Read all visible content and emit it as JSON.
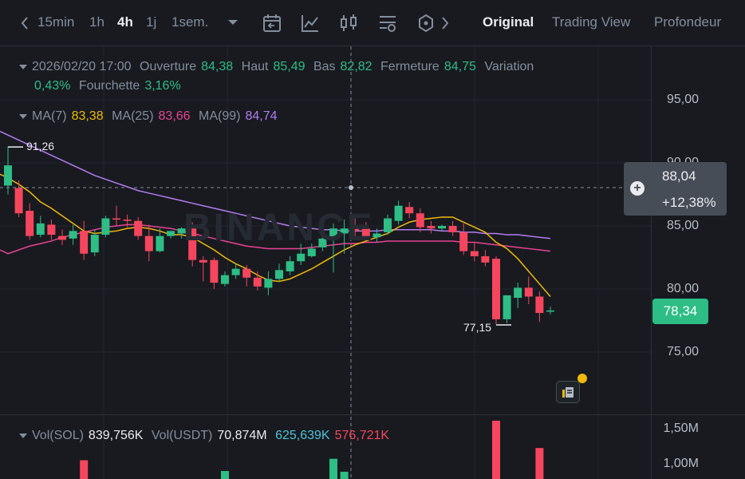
{
  "toolbar": {
    "intervals": [
      "15min",
      "1h",
      "4h",
      "1j",
      "1sem."
    ],
    "active_interval": "4h",
    "views": [
      "Original",
      "Trading View",
      "Profondeur"
    ],
    "active_view": "Original",
    "icons": [
      "chevron-left-icon",
      "chevron-down-icon",
      "calendar-icon",
      "indicator-icon",
      "candlestick-icon",
      "settings-icon",
      "hexagon-icon",
      "chevron-right-icon"
    ]
  },
  "ohlc": {
    "date": "2026/02/20 17:00",
    "open_label": "Ouverture",
    "open": "84,38",
    "high_label": "Haut",
    "high": "85,49",
    "low_label": "Bas",
    "low": "82,82",
    "close_label": "Fermeture",
    "close": "84,75",
    "change_label": "Variation",
    "change": "0,43%",
    "range_label": "Fourchette",
    "range": "3,16%"
  },
  "ma": {
    "ma7_label": "MA(7)",
    "ma7": "83,38",
    "ma25_label": "MA(25)",
    "ma25": "83,66",
    "ma99_label": "MA(99)",
    "ma99": "84,74"
  },
  "price_axis": [
    "95,00",
    "90,00",
    "85,00",
    "80,00",
    "75,00"
  ],
  "crosshair_box": {
    "price": "88,04",
    "change": "+12,38%"
  },
  "current_price": "78,34",
  "high_mark": "91,26",
  "low_mark": "77,15",
  "watermark": "BINANCE",
  "volume": {
    "vol_sol_label": "Vol(SOL)",
    "vol_sol": "839,756K",
    "vol_usdt_label": "Vol(USDT)",
    "vol_usdt": "70,874M",
    "buy": "625,639K",
    "sell": "576,721K",
    "axis": [
      "1,50M",
      "1,00M"
    ]
  },
  "colors": {
    "up": "#2ebd85",
    "down": "#f6465d",
    "ma7": "#f0b90b",
    "ma25": "#e84393",
    "ma99": "#b47cf0"
  },
  "chart_data": {
    "type": "candlestick",
    "ylim": [
      70.5,
      98
    ],
    "candles": [
      {
        "o": 88.2,
        "h": 91.3,
        "c": 89.8,
        "l": 87.5
      },
      {
        "o": 88.0,
        "h": 88.6,
        "c": 86.0,
        "l": 85.7
      },
      {
        "o": 86.2,
        "h": 86.8,
        "c": 84.2,
        "l": 83.9
      },
      {
        "o": 84.3,
        "h": 85.8,
        "c": 85.2,
        "l": 84.1
      },
      {
        "o": 85.1,
        "h": 85.5,
        "c": 84.3,
        "l": 83.9
      },
      {
        "o": 84.2,
        "h": 84.7,
        "c": 83.9,
        "l": 83.5
      },
      {
        "o": 84.0,
        "h": 85.1,
        "c": 84.6,
        "l": 83.5
      },
      {
        "o": 84.6,
        "h": 85.4,
        "c": 82.8,
        "l": 82.3
      },
      {
        "o": 82.9,
        "h": 84.7,
        "c": 84.3,
        "l": 82.6
      },
      {
        "o": 84.3,
        "h": 85.8,
        "c": 85.6,
        "l": 84.1
      },
      {
        "o": 85.6,
        "h": 86.6,
        "c": 85.5,
        "l": 85.0
      },
      {
        "o": 85.5,
        "h": 85.9,
        "c": 85.4,
        "l": 84.9
      },
      {
        "o": 85.4,
        "h": 85.7,
        "c": 84.2,
        "l": 83.9
      },
      {
        "o": 84.2,
        "h": 85.1,
        "c": 83.0,
        "l": 82.2
      },
      {
        "o": 83.0,
        "h": 84.8,
        "c": 84.2,
        "l": 82.9
      },
      {
        "o": 84.2,
        "h": 84.6,
        "c": 84.6,
        "l": 84.0
      },
      {
        "o": 84.4,
        "h": 84.9,
        "c": 84.8,
        "l": 84.0
      },
      {
        "o": 84.8,
        "h": 85.3,
        "c": 82.3,
        "l": 81.8
      },
      {
        "o": 82.3,
        "h": 82.6,
        "c": 82.1,
        "l": 80.6
      },
      {
        "o": 82.3,
        "h": 82.5,
        "c": 80.5,
        "l": 80.0
      },
      {
        "o": 80.4,
        "h": 81.4,
        "c": 81.1,
        "l": 80.2
      },
      {
        "o": 81.1,
        "h": 82.0,
        "c": 81.6,
        "l": 80.8
      },
      {
        "o": 81.6,
        "h": 81.9,
        "c": 80.9,
        "l": 80.2
      },
      {
        "o": 80.9,
        "h": 81.4,
        "c": 80.2,
        "l": 79.9
      },
      {
        "o": 80.1,
        "h": 81.4,
        "c": 80.8,
        "l": 79.5
      },
      {
        "o": 80.8,
        "h": 82.0,
        "c": 81.5,
        "l": 80.6
      },
      {
        "o": 81.4,
        "h": 82.6,
        "c": 82.2,
        "l": 81.1
      },
      {
        "o": 82.2,
        "h": 83.6,
        "c": 82.8,
        "l": 81.9
      },
      {
        "o": 82.6,
        "h": 83.6,
        "c": 83.2,
        "l": 82.5
      },
      {
        "o": 83.3,
        "h": 84.6,
        "c": 84.0,
        "l": 83.0
      },
      {
        "o": 83.9,
        "h": 85.2,
        "c": 84.8,
        "l": 81.3
      },
      {
        "o": 84.4,
        "h": 85.5,
        "c": 84.8,
        "l": 82.8
      },
      {
        "o": 84.9,
        "h": 85.6,
        "c": 84.6,
        "l": 84.1
      },
      {
        "o": 84.8,
        "h": 85.3,
        "c": 84.1,
        "l": 83.9
      },
      {
        "o": 84.1,
        "h": 84.8,
        "c": 84.4,
        "l": 83.7
      },
      {
        "o": 84.5,
        "h": 85.9,
        "c": 85.6,
        "l": 84.3
      },
      {
        "o": 85.4,
        "h": 87.0,
        "c": 86.6,
        "l": 85.1
      },
      {
        "o": 86.5,
        "h": 86.9,
        "c": 86.0,
        "l": 85.6
      },
      {
        "o": 86.0,
        "h": 86.4,
        "c": 84.9,
        "l": 84.5
      },
      {
        "o": 85.0,
        "h": 85.4,
        "c": 84.8,
        "l": 84.4
      },
      {
        "o": 84.8,
        "h": 85.1,
        "c": 85.0,
        "l": 84.6
      },
      {
        "o": 85.0,
        "h": 85.4,
        "c": 84.5,
        "l": 84.2
      },
      {
        "o": 84.5,
        "h": 85.2,
        "c": 83.0,
        "l": 82.7
      },
      {
        "o": 83.0,
        "h": 83.7,
        "c": 82.6,
        "l": 82.2
      },
      {
        "o": 82.6,
        "h": 83.1,
        "c": 82.1,
        "l": 81.8
      },
      {
        "o": 82.4,
        "h": 82.6,
        "c": 77.6,
        "l": 77.2
      },
      {
        "o": 77.6,
        "h": 79.5,
        "c": 79.5,
        "l": 77.3
      },
      {
        "o": 79.3,
        "h": 80.5,
        "c": 80.1,
        "l": 78.5
      },
      {
        "o": 80.1,
        "h": 81.0,
        "c": 79.4,
        "l": 78.8
      },
      {
        "o": 79.4,
        "h": 79.8,
        "c": 78.1,
        "l": 77.4
      },
      {
        "o": 78.2,
        "h": 78.6,
        "c": 78.3,
        "l": 78.0
      }
    ],
    "ma7": [
      88.8,
      88.3,
      87.7,
      86.9,
      86.4,
      85.8,
      85.2,
      84.6,
      84.4,
      84.5,
      84.6,
      84.8,
      84.9,
      84.8,
      84.6,
      84.3,
      84.3,
      84.1,
      83.6,
      83.1,
      82.5,
      82.0,
      81.6,
      81.1,
      80.7,
      80.6,
      80.8,
      81.2,
      81.6,
      82.1,
      82.6,
      83.1,
      83.5,
      83.8,
      84.1,
      84.4,
      84.9,
      85.3,
      85.5,
      85.6,
      85.7,
      85.7,
      85.3,
      84.9,
      84.5,
      83.7,
      83.2,
      82.4,
      81.4,
      80.4,
      79.4
    ],
    "ma25": [
      82.8,
      83.1,
      83.4,
      83.6,
      83.8,
      84.1,
      84.3,
      84.5,
      84.7,
      84.9,
      85.0,
      85.1,
      85.1,
      85.0,
      84.9,
      84.8,
      84.6,
      84.4,
      84.2,
      84.0,
      83.8,
      83.6,
      83.4,
      83.3,
      83.2,
      83.2,
      83.2,
      83.2,
      83.3,
      83.4,
      83.5,
      83.6,
      83.6,
      83.7,
      83.7,
      83.8,
      83.8,
      83.8,
      83.8,
      83.8,
      83.8,
      83.8,
      83.7,
      83.7,
      83.6,
      83.5,
      83.4,
      83.3,
      83.2,
      83.1,
      83.0
    ],
    "ma99": [
      92.2,
      91.8,
      91.4,
      91.0,
      90.6,
      90.2,
      89.8,
      89.4,
      89.0,
      88.7,
      88.4,
      88.1,
      87.8,
      87.6,
      87.4,
      87.2,
      87.0,
      86.8,
      86.6,
      86.4,
      86.2,
      86.0,
      85.8,
      85.6,
      85.4,
      85.2,
      85.0,
      84.9,
      84.8,
      84.7,
      84.7,
      84.6,
      84.6,
      84.6,
      84.6,
      84.7,
      84.7,
      84.7,
      84.7,
      84.7,
      84.6,
      84.6,
      84.5,
      84.5,
      84.4,
      84.4,
      84.3,
      84.3,
      84.2,
      84.1,
      84.0
    ],
    "volume_visible": [
      0,
      0,
      0,
      0,
      0,
      0,
      0,
      1.05,
      0,
      0,
      0,
      0,
      0,
      0,
      0,
      0,
      0,
      0,
      0,
      0,
      0.9,
      0,
      0,
      0,
      0,
      0,
      0,
      0,
      0,
      0,
      1.07,
      0.89,
      0,
      0,
      0,
      0,
      0,
      0,
      0,
      0,
      0,
      0,
      0,
      0,
      0,
      1.6,
      0,
      0,
      0,
      1.22,
      0
    ]
  }
}
